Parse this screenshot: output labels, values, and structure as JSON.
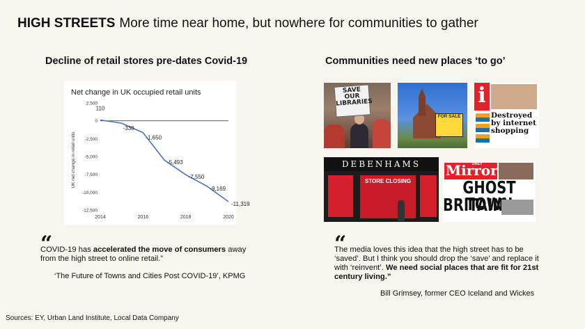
{
  "header": {
    "bold": "HIGH STREETS",
    "rest": "More time near home, but nowhere for communities to gather"
  },
  "left": {
    "subtitle": "Decline of retail stores pre-dates Covid-19",
    "quote_mark": "“",
    "quote_parts": [
      "COVID-19 has ",
      "accelerated the move of consumers",
      " away from the high street to online retail.”"
    ],
    "attribution": "‘The Future of Towns and Cities Post COVID-19’, KPMG"
  },
  "right": {
    "subtitle": "Communities need new places ‘to go’",
    "quote_mark": "“",
    "quote_parts": [
      "The media loves this idea that the high street has to be ‘saved’. But I think you should drop the ‘save’ and replace it with ‘reinvent’. ",
      "We need social places that are fit for 21st century living.”"
    ],
    "attribution": "Bill Grimsey, former CEO Iceland and Wickes",
    "photos": {
      "protest_sign": "SAVE OUR LIBRARIES",
      "for_sale": "FOR SALE",
      "i_headline": "Destroyed by internet shopping",
      "i_logo": "i",
      "debenhams": "DEBENHAMS",
      "store_closing": "STORE CLOSING",
      "mirror_logo": "Mirror",
      "mirror_small": "DAILY",
      "mirror_headline_1": "GHOST TOWN",
      "mirror_headline_2": "BRITAIN"
    }
  },
  "sources": "Sources: EY, Urban Land Institute, Local Data Company",
  "chart_data": {
    "type": "line",
    "title": "Net change in UK occupied retail units",
    "ylabel": "UK net change in retail units",
    "xlabel": "",
    "x": [
      2014,
      2015,
      2016,
      2017,
      2018,
      2019,
      2020
    ],
    "values": [
      110,
      -338,
      -1650,
      -5493,
      -7550,
      -9169,
      -11319
    ],
    "labels": [
      "110",
      "-338",
      "-1,650",
      "-5,493",
      "-7,550",
      "-9,169",
      "-11,319"
    ],
    "yticks": [
      2500,
      0,
      -2500,
      -5000,
      -7500,
      -10000,
      -12500
    ],
    "yticklabels": [
      "2,500",
      "0",
      "-2,500",
      "-5,000",
      "-7,500",
      "-10,000",
      "-12,500"
    ],
    "xticks": [
      2014,
      2016,
      2018,
      2020
    ],
    "xticklabels": [
      "2014",
      "2016",
      "2018",
      "2020"
    ],
    "ylim": [
      -12500,
      2500
    ],
    "xlim": [
      2014,
      2020
    ],
    "line_color": "#4472c4",
    "grid": false
  }
}
